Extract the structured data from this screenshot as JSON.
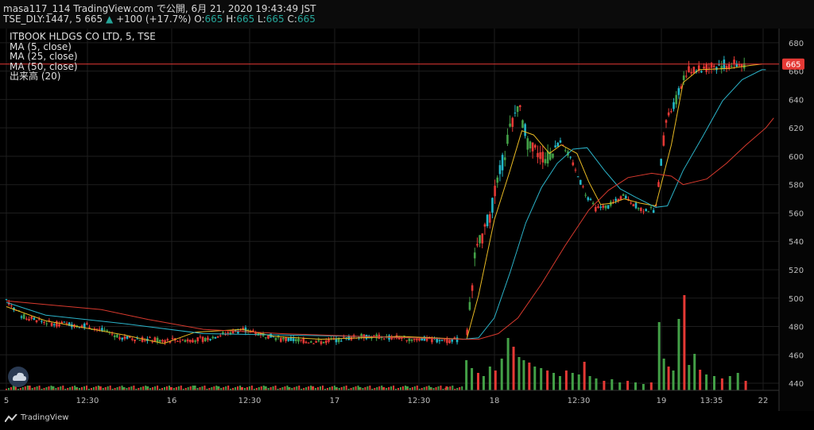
{
  "header": {
    "line1": "masa117_114 TradingView.com で公開, 6月 21, 2020 19:43:49 JST",
    "symbol": "TSE_DLY:1447, 5",
    "last": "665",
    "change": "+100 (+17.7%)",
    "o_label": "O:",
    "o": "665",
    "h_label": "H:",
    "h": "665",
    "l_label": "L:",
    "l": "665",
    "c_label": "C:",
    "c": "665"
  },
  "legend": {
    "title": "ITBOOK HLDGS CO LTD, 5, TSE",
    "ma5": "MA (5, close)",
    "ma25": "MA (25, close)",
    "ma50": "MA (50, close)",
    "volume": "出来高 (20)"
  },
  "footer": {
    "brand": "TradingView"
  },
  "colors": {
    "up": "#43a047",
    "down": "#e53935",
    "teal": "#22b7c7",
    "ma5": "#e8b923",
    "ma25": "#2bb3c9",
    "ma50": "#d93a2e",
    "grid": "#1e1e1e"
  },
  "chart_data": {
    "type": "candlestick",
    "title": "ITBOOK HLDGS CO LTD, 5, TSE",
    "ylim": [
      435,
      690
    ],
    "y_ticks": [
      680,
      660,
      640,
      620,
      600,
      580,
      560,
      540,
      520,
      500,
      480,
      460,
      440
    ],
    "x_ticks": [
      "5",
      "12:30",
      "16",
      "12:30",
      "17",
      "12:30",
      "18",
      "12:30",
      "19",
      "13:35",
      "22"
    ],
    "last_price": 665,
    "last_price_label": "665",
    "price_path": [
      [
        0,
        499
      ],
      [
        20,
        487
      ],
      [
        60,
        482
      ],
      [
        100,
        481
      ],
      [
        150,
        472
      ],
      [
        200,
        470
      ],
      [
        250,
        471
      ],
      [
        300,
        478
      ],
      [
        350,
        471
      ],
      [
        400,
        469
      ],
      [
        450,
        473
      ],
      [
        500,
        472
      ],
      [
        560,
        470
      ],
      [
        585,
        471
      ],
      [
        595,
        528
      ],
      [
        615,
        560
      ],
      [
        640,
        618
      ],
      [
        650,
        637
      ],
      [
        665,
        605
      ],
      [
        690,
        598
      ],
      [
        705,
        612
      ],
      [
        715,
        600
      ],
      [
        735,
        575
      ],
      [
        748,
        563
      ],
      [
        765,
        565
      ],
      [
        785,
        572
      ],
      [
        805,
        563
      ],
      [
        825,
        562
      ],
      [
        838,
        625
      ],
      [
        855,
        645
      ],
      [
        862,
        660
      ],
      [
        875,
        660
      ],
      [
        900,
        664
      ],
      [
        940,
        665
      ]
    ],
    "ma_series": [
      {
        "name": "MA (5, close)",
        "path": [
          [
            0,
            494
          ],
          [
            50,
            484
          ],
          [
            150,
            474
          ],
          [
            200,
            468
          ],
          [
            240,
            476
          ],
          [
            300,
            478
          ],
          [
            340,
            473
          ],
          [
            400,
            471
          ],
          [
            500,
            473
          ],
          [
            585,
            471
          ],
          [
            600,
            502
          ],
          [
            620,
            555
          ],
          [
            640,
            590
          ],
          [
            655,
            618
          ],
          [
            670,
            615
          ],
          [
            690,
            602
          ],
          [
            705,
            608
          ],
          [
            725,
            602
          ],
          [
            740,
            582
          ],
          [
            755,
            566
          ],
          [
            770,
            567
          ],
          [
            785,
            570
          ],
          [
            805,
            567
          ],
          [
            825,
            565
          ],
          [
            845,
            608
          ],
          [
            860,
            652
          ],
          [
            880,
            661
          ],
          [
            920,
            662
          ],
          [
            945,
            664
          ],
          [
            960,
            665
          ]
        ]
      },
      {
        "name": "MA (25, close)",
        "path": [
          [
            0,
            497
          ],
          [
            50,
            488
          ],
          [
            150,
            482
          ],
          [
            250,
            475
          ],
          [
            350,
            474
          ],
          [
            450,
            473
          ],
          [
            580,
            471
          ],
          [
            600,
            472
          ],
          [
            620,
            486
          ],
          [
            640,
            518
          ],
          [
            660,
            553
          ],
          [
            680,
            578
          ],
          [
            700,
            595
          ],
          [
            720,
            605
          ],
          [
            738,
            606
          ],
          [
            760,
            590
          ],
          [
            780,
            577
          ],
          [
            800,
            571
          ],
          [
            825,
            564
          ],
          [
            840,
            565
          ],
          [
            860,
            590
          ],
          [
            885,
            614
          ],
          [
            910,
            639
          ],
          [
            935,
            654
          ],
          [
            960,
            661
          ],
          [
            965,
            661
          ]
        ]
      },
      {
        "name": "MA (50, close)",
        "path": [
          [
            0,
            498
          ],
          [
            60,
            495
          ],
          [
            120,
            492
          ],
          [
            180,
            485
          ],
          [
            250,
            478
          ],
          [
            350,
            475
          ],
          [
            450,
            473
          ],
          [
            580,
            471
          ],
          [
            600,
            471
          ],
          [
            625,
            475
          ],
          [
            650,
            486
          ],
          [
            680,
            510
          ],
          [
            710,
            537
          ],
          [
            740,
            562
          ],
          [
            765,
            576
          ],
          [
            790,
            585
          ],
          [
            820,
            588
          ],
          [
            845,
            586
          ],
          [
            860,
            580
          ],
          [
            890,
            584
          ],
          [
            915,
            595
          ],
          [
            940,
            608
          ],
          [
            965,
            620
          ],
          [
            975,
            627
          ]
        ]
      }
    ],
    "volume_bars": [
      [
        10,
        8
      ],
      [
        30,
        6
      ],
      [
        60,
        5
      ],
      [
        90,
        4
      ],
      [
        120,
        5
      ],
      [
        150,
        4
      ],
      [
        180,
        5
      ],
      [
        210,
        4
      ],
      [
        240,
        6
      ],
      [
        270,
        5
      ],
      [
        300,
        4
      ],
      [
        330,
        5
      ],
      [
        360,
        4
      ],
      [
        390,
        5
      ],
      [
        420,
        4
      ],
      [
        450,
        4
      ],
      [
        480,
        4
      ],
      [
        510,
        5
      ],
      [
        540,
        4
      ],
      [
        560,
        5
      ],
      [
        585,
        38
      ],
      [
        592,
        28
      ],
      [
        600,
        22
      ],
      [
        607,
        18
      ],
      [
        615,
        30
      ],
      [
        622,
        25
      ],
      [
        630,
        40
      ],
      [
        638,
        66
      ],
      [
        645,
        55
      ],
      [
        652,
        42
      ],
      [
        658,
        38
      ],
      [
        665,
        35
      ],
      [
        672,
        30
      ],
      [
        680,
        28
      ],
      [
        688,
        25
      ],
      [
        696,
        22
      ],
      [
        704,
        18
      ],
      [
        712,
        25
      ],
      [
        720,
        22
      ],
      [
        728,
        20
      ],
      [
        735,
        36
      ],
      [
        742,
        18
      ],
      [
        750,
        15
      ],
      [
        760,
        12
      ],
      [
        770,
        14
      ],
      [
        780,
        10
      ],
      [
        790,
        12
      ],
      [
        800,
        10
      ],
      [
        810,
        8
      ],
      [
        820,
        10
      ],
      [
        830,
        86
      ],
      [
        836,
        40
      ],
      [
        842,
        30
      ],
      [
        848,
        25
      ],
      [
        855,
        90
      ],
      [
        862,
        120
      ],
      [
        868,
        32
      ],
      [
        875,
        46
      ],
      [
        882,
        26
      ],
      [
        890,
        20
      ],
      [
        900,
        18
      ],
      [
        910,
        15
      ],
      [
        920,
        18
      ],
      [
        930,
        22
      ],
      [
        940,
        12
      ]
    ]
  }
}
